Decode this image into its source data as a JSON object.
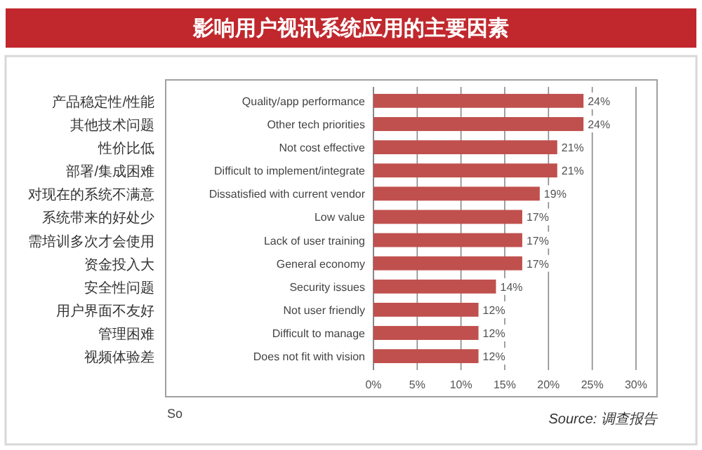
{
  "chart_data": {
    "type": "bar",
    "orientation": "horizontal",
    "title": "影响用户视讯系统应用的主要因素",
    "categories": [
      "Quality/app performance",
      "Other tech priorities",
      "Not cost effective",
      "Difficult to implement/integrate",
      "Dissatisfied with current vendor",
      "Low value",
      "Lack of user training",
      "General economy",
      "Security issues",
      "Not user friendly",
      "Difficult to manage",
      "Does not fit with vision"
    ],
    "values": [
      24,
      24,
      21,
      21,
      19,
      17,
      17,
      17,
      14,
      12,
      12,
      12
    ],
    "value_labels": [
      "24%",
      "24%",
      "21%",
      "21%",
      "19%",
      "17%",
      "17%",
      "17%",
      "14%",
      "12%",
      "12%",
      "12%"
    ],
    "color": "#c0504d",
    "xlim": [
      0,
      30
    ],
    "xticks": [
      {
        "value": 0,
        "label": "0%"
      },
      {
        "value": 5,
        "label": "5%"
      },
      {
        "value": 10,
        "label": "10%"
      },
      {
        "value": 15,
        "label": "15%"
      },
      {
        "value": 20,
        "label": "20%"
      },
      {
        "value": 25,
        "label": "25%"
      },
      {
        "value": 30,
        "label": "30%"
      }
    ],
    "grid": "x",
    "annotations": [
      "So",
      "Source: 调查报告",
      "产品稳定性/性能",
      "其他技术问题",
      "性价比低",
      "部署/集成困难",
      "对现在的系统不满意",
      "系统带来的好处少",
      "需培训多次才会使用",
      "资金投入大",
      "安全性问题",
      "用户界面不友好",
      "管理困难",
      "视频体验差"
    ]
  }
}
